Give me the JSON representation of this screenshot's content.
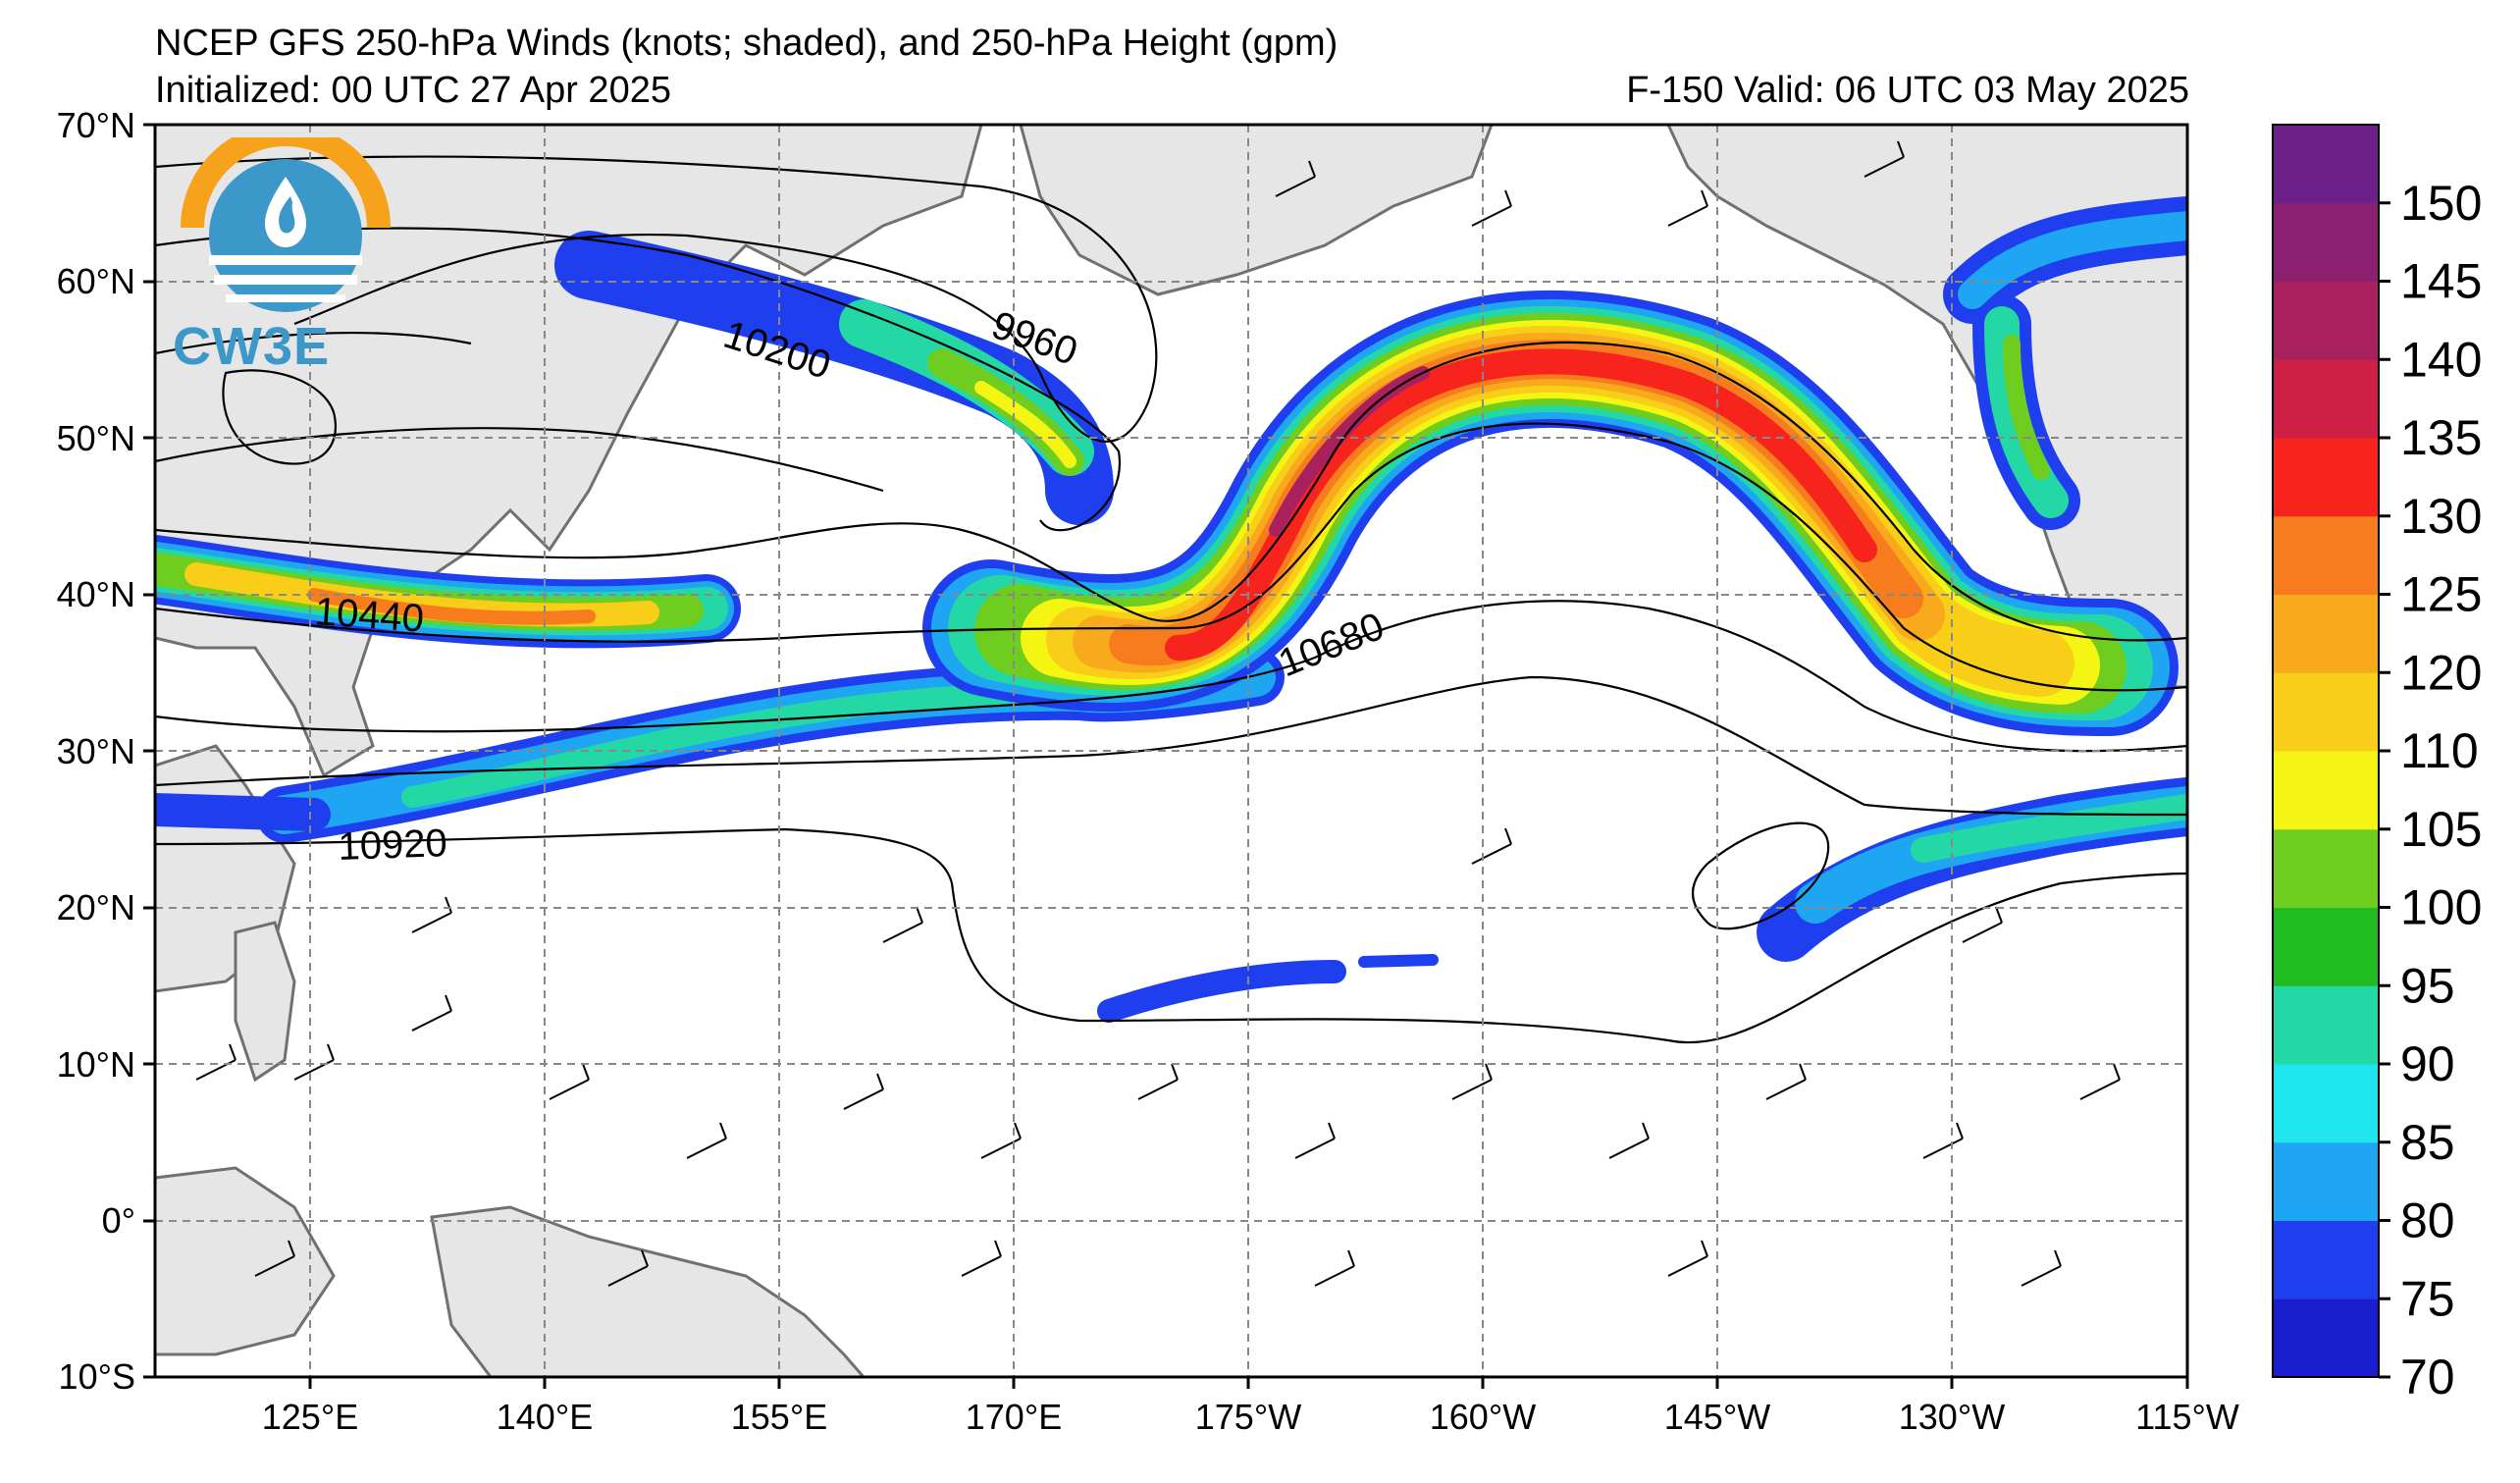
{
  "header": {
    "title": "NCEP GFS 250-hPa Winds (knots; shaded), and 250-hPa Height (gpm)",
    "initialized": "Initialized: 00 UTC 27 Apr 2025",
    "valid": "F-150  Valid: 06 UTC 03 May 2025"
  },
  "logo": {
    "text": "CW3E",
    "brand_color": "#3b98c9",
    "accent_color": "#f7a21b"
  },
  "axes": {
    "lat_ticks": [
      "70°N",
      "60°N",
      "50°N",
      "40°N",
      "30°N",
      "20°N",
      "10°N",
      "0°",
      "10°S"
    ],
    "lon_ticks": [
      "125°E",
      "140°E",
      "155°E",
      "170°E",
      "175°W",
      "160°W",
      "145°W",
      "130°W",
      "115°W"
    ]
  },
  "contour_labels": [
    "10200",
    "9960",
    "10440",
    "10680",
    "10920"
  ],
  "colorbar": {
    "ticks": [
      "70",
      "75",
      "80",
      "85",
      "90",
      "95",
      "100",
      "105",
      "110",
      "120",
      "125",
      "130",
      "135",
      "140",
      "145",
      "150"
    ],
    "colors": [
      "#1a1ecf",
      "#1f3fef",
      "#1fa6f2",
      "#1ee6ee",
      "#24d8a6",
      "#1fbd1f",
      "#6fcd1f",
      "#f5f514",
      "#f8ce19",
      "#f9aa1c",
      "#f77c1d",
      "#f7231d",
      "#d01f45",
      "#a8205e",
      "#8c2070",
      "#6d1f8a"
    ]
  }
}
